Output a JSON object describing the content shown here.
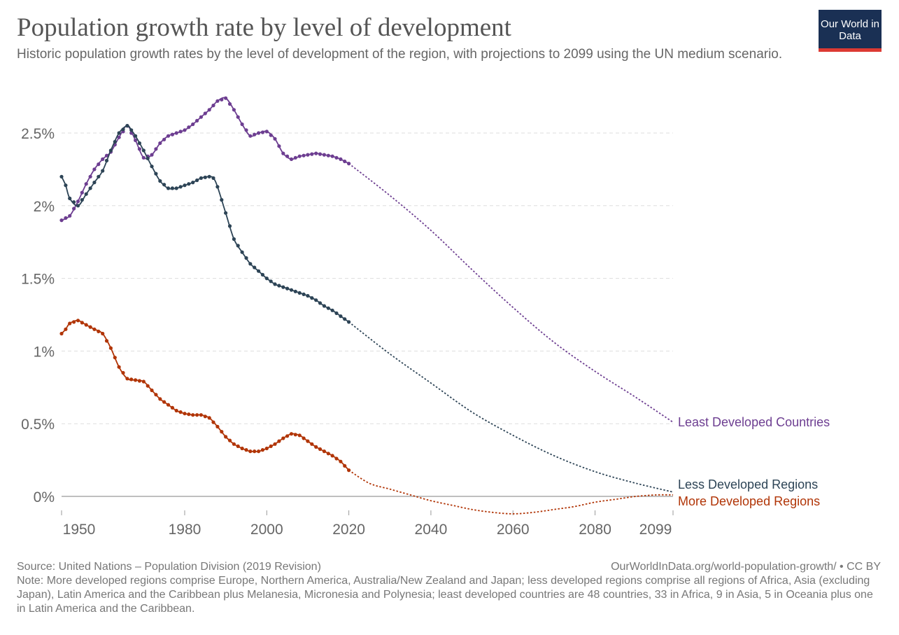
{
  "header": {
    "title": "Population growth rate by level of development",
    "subtitle": "Historic population growth rates by the level of development of the region, with projections to 2099 using the UN medium scenario.",
    "logo": "Our World in Data",
    "logo_icon": "owid-logo-icon"
  },
  "colors": {
    "least": "#6d3e91",
    "less": "#2d4456",
    "more": "#b13507",
    "grid": "#dddddd",
    "zero": "#999999",
    "tick_text": "#666666",
    "logo_bg": "#1a3054",
    "logo_bar": "#dc3a33"
  },
  "chart_data": {
    "type": "line",
    "title": "Population growth rate by level of development",
    "xlabel": "",
    "ylabel": "",
    "xlim": [
      1950,
      2099
    ],
    "ylim": [
      -0.12,
      2.75
    ],
    "y_unit": "%",
    "xticks": [
      {
        "value": 1950,
        "label": "1950"
      },
      {
        "value": 1980,
        "label": "1980"
      },
      {
        "value": 2000,
        "label": "2000"
      },
      {
        "value": 2020,
        "label": "2020"
      },
      {
        "value": 2040,
        "label": "2040"
      },
      {
        "value": 2060,
        "label": "2060"
      },
      {
        "value": 2080,
        "label": "2080"
      },
      {
        "value": 2099,
        "label": "2099"
      }
    ],
    "yticks": [
      {
        "value": 0,
        "label": "0%"
      },
      {
        "value": 0.5,
        "label": "0.5%"
      },
      {
        "value": 1,
        "label": "1%"
      },
      {
        "value": 1.5,
        "label": "1.5%"
      },
      {
        "value": 2,
        "label": "2%"
      },
      {
        "value": 2.5,
        "label": "2.5%"
      }
    ],
    "grid": true,
    "legend": "inline labels at right end of lines",
    "historic_end_year": 2020,
    "series": [
      {
        "name": "Least Developed Countries",
        "key": "least",
        "historic": {
          "x": [
            1950,
            1952,
            1954,
            1956,
            1958,
            1960,
            1962,
            1964,
            1966,
            1968,
            1970,
            1972,
            1974,
            1976,
            1978,
            1980,
            1982,
            1984,
            1986,
            1988,
            1990,
            1992,
            1994,
            1996,
            1998,
            2000,
            2002,
            2004,
            2006,
            2008,
            2010,
            2012,
            2014,
            2016,
            2018,
            2020
          ],
          "y": [
            1.9,
            1.93,
            2.03,
            2.15,
            2.25,
            2.32,
            2.37,
            2.47,
            2.55,
            2.45,
            2.33,
            2.35,
            2.43,
            2.48,
            2.5,
            2.52,
            2.56,
            2.61,
            2.66,
            2.72,
            2.74,
            2.66,
            2.56,
            2.48,
            2.5,
            2.51,
            2.46,
            2.36,
            2.32,
            2.34,
            2.35,
            2.36,
            2.35,
            2.34,
            2.32,
            2.29
          ]
        },
        "projection": {
          "x": [
            2020,
            2030,
            2040,
            2050,
            2060,
            2070,
            2080,
            2090,
            2099
          ],
          "y": [
            2.29,
            2.07,
            1.83,
            1.56,
            1.3,
            1.06,
            0.86,
            0.68,
            0.51
          ]
        }
      },
      {
        "name": "Less Developed Regions",
        "key": "less",
        "historic": {
          "x": [
            1950,
            1951,
            1952,
            1954,
            1956,
            1958,
            1960,
            1962,
            1964,
            1966,
            1967,
            1968,
            1970,
            1972,
            1974,
            1976,
            1978,
            1980,
            1982,
            1984,
            1986,
            1987,
            1988,
            1990,
            1992,
            1994,
            1996,
            1998,
            2000,
            2002,
            2004,
            2006,
            2008,
            2010,
            2012,
            2014,
            2016,
            2018,
            2020
          ],
          "y": [
            2.2,
            2.14,
            2.05,
            2.0,
            2.08,
            2.16,
            2.24,
            2.38,
            2.5,
            2.55,
            2.52,
            2.48,
            2.38,
            2.27,
            2.17,
            2.12,
            2.12,
            2.14,
            2.16,
            2.19,
            2.2,
            2.19,
            2.13,
            1.95,
            1.77,
            1.68,
            1.6,
            1.55,
            1.5,
            1.46,
            1.44,
            1.42,
            1.4,
            1.38,
            1.35,
            1.31,
            1.28,
            1.24,
            1.2
          ]
        },
        "projection": {
          "x": [
            2020,
            2030,
            2040,
            2050,
            2060,
            2070,
            2080,
            2090,
            2099
          ],
          "y": [
            1.2,
            0.98,
            0.78,
            0.58,
            0.42,
            0.28,
            0.17,
            0.09,
            0.03
          ]
        }
      },
      {
        "name": "More Developed Regions",
        "key": "more",
        "historic": {
          "x": [
            1950,
            1951,
            1952,
            1954,
            1956,
            1958,
            1960,
            1962,
            1964,
            1966,
            1968,
            1970,
            1972,
            1974,
            1976,
            1978,
            1980,
            1982,
            1984,
            1986,
            1988,
            1990,
            1992,
            1994,
            1996,
            1998,
            2000,
            2002,
            2004,
            2006,
            2008,
            2010,
            2012,
            2014,
            2016,
            2018,
            2020
          ],
          "y": [
            1.12,
            1.15,
            1.19,
            1.21,
            1.18,
            1.15,
            1.12,
            1.02,
            0.89,
            0.81,
            0.8,
            0.79,
            0.73,
            0.67,
            0.63,
            0.59,
            0.57,
            0.56,
            0.56,
            0.54,
            0.48,
            0.41,
            0.36,
            0.33,
            0.31,
            0.31,
            0.33,
            0.36,
            0.4,
            0.43,
            0.42,
            0.38,
            0.34,
            0.31,
            0.28,
            0.24,
            0.18
          ]
        },
        "projection": {
          "x": [
            2020,
            2025,
            2030,
            2035,
            2040,
            2045,
            2050,
            2055,
            2060,
            2065,
            2070,
            2075,
            2080,
            2085,
            2090,
            2095,
            2099
          ],
          "y": [
            0.18,
            0.09,
            0.05,
            0.01,
            -0.03,
            -0.06,
            -0.09,
            -0.11,
            -0.12,
            -0.11,
            -0.09,
            -0.07,
            -0.04,
            -0.02,
            0.0,
            0.01,
            0.01
          ]
        }
      }
    ]
  },
  "footer": {
    "source": "Source: United Nations – Population Division (2019 Revision)",
    "url": "OurWorldInData.org/world-population-growth/ • CC BY",
    "note": "Note: More developed regions comprise Europe, Northern America, Australia/New Zealand and Japan; less developed regions comprise all regions of Africa, Asia (excluding Japan), Latin America and the Caribbean plus Melanesia, Micronesia and Polynesia; least developed countries are 48 countries, 33 in Africa, 9 in Asia, 5 in Oceania plus one in Latin America and the Caribbean."
  }
}
